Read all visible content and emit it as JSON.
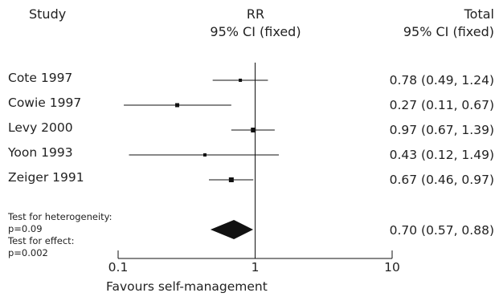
{
  "header": {
    "study": "Study",
    "rr_line1": "RR",
    "rr_line2": "95% CI (fixed)",
    "total_line1": "Total",
    "total_line2": "95% CI (fixed)"
  },
  "footer": {
    "heterogeneity_label": "Test for heterogeneity:",
    "heterogeneity_p": "p=0.09",
    "effect_label": "Test for effect:",
    "effect_p": "p=0.002",
    "favours": "Favours self-management"
  },
  "chart_data": {
    "type": "forest",
    "x_scale": "log",
    "xlim": [
      0.1,
      10
    ],
    "ticks": [
      {
        "value": 0.1,
        "label": "0.1"
      },
      {
        "value": 1,
        "label": "1"
      },
      {
        "value": 10,
        "label": "10"
      }
    ],
    "null_value": 1,
    "studies": [
      {
        "name": "Cote 1997",
        "rr": 0.78,
        "lo": 0.49,
        "hi": 1.24,
        "weight": 1,
        "label": "0.78 (0.49, 1.24)"
      },
      {
        "name": "Cowie 1997",
        "rr": 0.27,
        "lo": 0.11,
        "hi": 0.67,
        "weight": 2,
        "label": "0.27 (0.11, 0.67)"
      },
      {
        "name": "Levy 2000",
        "rr": 0.97,
        "lo": 0.67,
        "hi": 1.39,
        "weight": 3,
        "label": "0.97 (0.67, 1.39)"
      },
      {
        "name": "Yoon 1993",
        "rr": 0.43,
        "lo": 0.12,
        "hi": 1.49,
        "weight": 1,
        "label": "0.43 (0.12, 1.49)"
      },
      {
        "name": "Zeiger 1991",
        "rr": 0.67,
        "lo": 0.46,
        "hi": 0.97,
        "weight": 3,
        "label": "0.67 (0.46, 0.97)"
      }
    ],
    "pooled": {
      "rr": 0.7,
      "lo": 0.57,
      "hi": 0.88,
      "label": "0.70 (0.57, 0.88)"
    },
    "colors": {
      "marks": "#111111",
      "diamond": "#111111"
    }
  }
}
